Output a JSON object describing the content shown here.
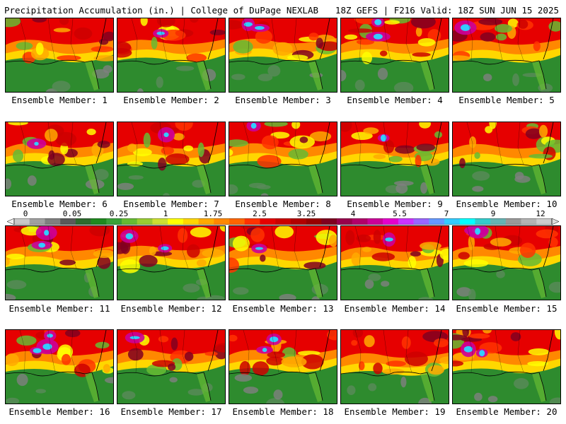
{
  "header": {
    "left_title": "Precipitation Accumulation (in.) | College of DuPage NEXLAB",
    "right_title": "18Z GEFS | F216 Valid: 18Z SUN JUN 15 2025"
  },
  "members": [
    {
      "label": "Ensemble Member: 1",
      "wet": 0.55,
      "extreme": 0.05
    },
    {
      "label": "Ensemble Member: 2",
      "wet": 0.55,
      "extreme": 0.1
    },
    {
      "label": "Ensemble Member: 3",
      "wet": 0.7,
      "extreme": 0.35
    },
    {
      "label": "Ensemble Member: 4",
      "wet": 0.6,
      "extreme": 0.3
    },
    {
      "label": "Ensemble Member: 5",
      "wet": 0.5,
      "extreme": 0.2
    },
    {
      "label": "Ensemble Member: 6",
      "wet": 0.6,
      "extreme": 0.1
    },
    {
      "label": "Ensemble Member: 7",
      "wet": 0.5,
      "extreme": 0.15
    },
    {
      "label": "Ensemble Member: 8",
      "wet": 0.6,
      "extreme": 0.1
    },
    {
      "label": "Ensemble Member: 9",
      "wet": 0.6,
      "extreme": 0.2
    },
    {
      "label": "Ensemble Member: 10",
      "wet": 0.5,
      "extreme": 0.05
    },
    {
      "label": "Ensemble Member: 11",
      "wet": 0.7,
      "extreme": 0.4
    },
    {
      "label": "Ensemble Member: 12",
      "wet": 0.8,
      "extreme": 0.35
    },
    {
      "label": "Ensemble Member: 13",
      "wet": 0.65,
      "extreme": 0.2
    },
    {
      "label": "Ensemble Member: 14",
      "wet": 0.6,
      "extreme": 0.2
    },
    {
      "label": "Ensemble Member: 15",
      "wet": 0.7,
      "extreme": 0.4
    },
    {
      "label": "Ensemble Member: 16",
      "wet": 0.6,
      "extreme": 0.5
    },
    {
      "label": "Ensemble Member: 17",
      "wet": 0.75,
      "extreme": 0.2
    },
    {
      "label": "Ensemble Member: 18",
      "wet": 0.75,
      "extreme": 0.35
    },
    {
      "label": "Ensemble Member: 19",
      "wet": 0.3,
      "extreme": 0.0
    },
    {
      "label": "Ensemble Member: 20",
      "wet": 0.65,
      "extreme": 0.4
    }
  ],
  "colorbar": {
    "tick_labels": [
      "0",
      "0.05",
      "0.25",
      "1",
      "1.75",
      "2.5",
      "3.25",
      "4",
      "5.5",
      "7",
      "9",
      "12"
    ],
    "colors": [
      "#c8c8c8",
      "#a0a0a0",
      "#808080",
      "#5a5a5a",
      "#2e6b2e",
      "#1f8a1f",
      "#3aa23a",
      "#66bb33",
      "#99cc33",
      "#cce033",
      "#ffff00",
      "#ffd700",
      "#ffaa00",
      "#ff8800",
      "#ff6600",
      "#ff3300",
      "#e60000",
      "#cc0000",
      "#b30000",
      "#990000",
      "#800020",
      "#99004d",
      "#b3006b",
      "#cc0099",
      "#e600cc",
      "#cc33ff",
      "#9966ff",
      "#6699ff",
      "#33ccff",
      "#00ffff",
      "#33cccc",
      "#66b3b3",
      "#999999",
      "#b3b3b3",
      "#cccccc"
    ]
  }
}
